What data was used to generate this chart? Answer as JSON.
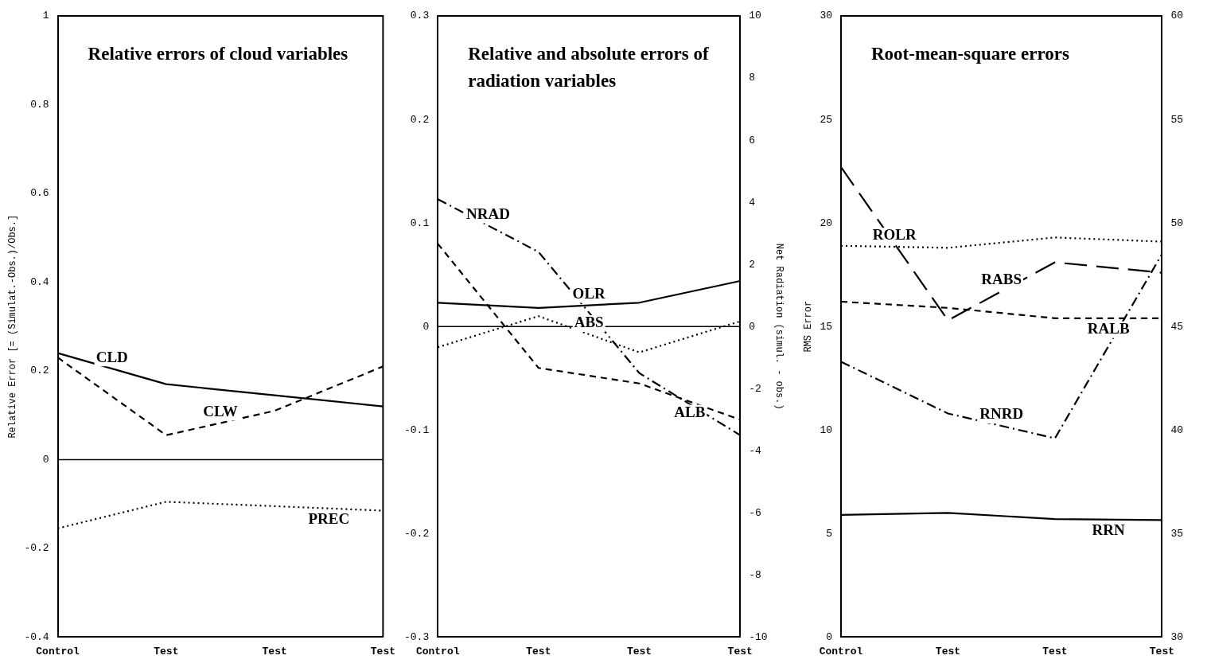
{
  "chart_data": [
    {
      "type": "line",
      "title": "Relative errors of cloud variables",
      "ylabel": "Relative Error [= (Simulat.-Obs.)/Obs.]",
      "categories": [
        "Control",
        "Test",
        "Test",
        "Test"
      ],
      "ylim": [
        -0.4,
        1
      ],
      "yticks": [
        {
          "value": -0.4,
          "label": "-0.4"
        },
        {
          "value": -0.2,
          "label": "-0.2"
        },
        0,
        {
          "value": 0.2,
          "label": "0.2"
        },
        {
          "value": 0.4,
          "label": "0.4"
        },
        {
          "value": 0.6,
          "label": "0.6"
        },
        {
          "value": 0.8,
          "label": "0.8"
        },
        1
      ],
      "grid": false,
      "legend": false,
      "marker": "none",
      "ref_lines": [
        {
          "axis": "y",
          "value": 0,
          "color": "#000000"
        }
      ],
      "series": [
        {
          "name": "CLD",
          "color": "#000000",
          "line_style": "solid",
          "values": [
            0.24,
            0.17,
            0.145,
            0.12
          ]
        },
        {
          "name": "CLW",
          "color": "#000000",
          "line_style": "dashed",
          "values": [
            0.23,
            0.055,
            0.11,
            0.21
          ]
        },
        {
          "name": "PREC",
          "color": "#000000",
          "line_style": "dotted",
          "values": [
            -0.155,
            -0.095,
            -0.105,
            -0.115
          ]
        }
      ]
    },
    {
      "type": "line",
      "title": "Relative and absolute errors of radiation variables",
      "y2label": "Net Radiation (simul. - obs.)",
      "categories": [
        "Control",
        "Test",
        "Test",
        "Test"
      ],
      "ylim": [
        -0.3,
        0.3
      ],
      "yticks": [
        {
          "value": -0.3,
          "label": "-0.3"
        },
        {
          "value": -0.2,
          "label": "-0.2"
        },
        {
          "value": -0.1,
          "label": "-0.1"
        },
        0,
        {
          "value": 0.1,
          "label": "0.1"
        },
        {
          "value": 0.2,
          "label": "0.2"
        },
        {
          "value": 0.3,
          "label": "0.3"
        }
      ],
      "y2lim": [
        -10,
        10
      ],
      "y2ticks": [
        -10,
        -8,
        -6,
        -4,
        -2,
        0,
        2,
        4,
        6,
        8,
        10
      ],
      "grid": false,
      "legend": false,
      "marker": "none",
      "ref_lines": [
        {
          "axis": "y",
          "value": 0,
          "color": "#000000"
        }
      ],
      "series": [
        {
          "name": "NRAD",
          "color": "#000000",
          "line_style": "dashdot",
          "axis": "y2",
          "values": [
            4.1,
            2.4,
            -1.5,
            -3.5
          ]
        },
        {
          "name": "OLR",
          "color": "#000000",
          "line_style": "solid",
          "values": [
            0.023,
            0.018,
            0.023,
            0.044
          ]
        },
        {
          "name": "ALB",
          "color": "#000000",
          "line_style": "dashed",
          "values": [
            0.08,
            -0.04,
            -0.055,
            -0.09
          ]
        },
        {
          "name": "ABS",
          "color": "#000000",
          "line_style": "dotted",
          "values": [
            -0.02,
            0.01,
            -0.025,
            0.005
          ]
        }
      ]
    },
    {
      "type": "line",
      "title": "Root-mean-square errors",
      "ylabel": "RMS Error",
      "categories": [
        "Control",
        "Test",
        "Test",
        "Test"
      ],
      "ylim": [
        0,
        30
      ],
      "yticks": [
        0,
        5,
        10,
        15,
        20,
        25,
        30
      ],
      "y2lim": [
        30,
        60
      ],
      "y2ticks": [
        30,
        35,
        40,
        45,
        50,
        55,
        60
      ],
      "grid": false,
      "legend": false,
      "marker": "none",
      "series": [
        {
          "name": "ROLR",
          "color": "#000000",
          "line_style": "dotted",
          "values": [
            18.9,
            18.8,
            19.3,
            19.1
          ]
        },
        {
          "name": "RABS",
          "color": "#000000",
          "line_style": "longdash",
          "values": [
            22.7,
            15.3,
            18.1,
            17.6
          ]
        },
        {
          "name": "RALB",
          "color": "#000000",
          "line_style": "dashed",
          "values": [
            16.2,
            15.9,
            15.4,
            15.4
          ]
        },
        {
          "name": "RNRD",
          "color": "#000000",
          "line_style": "dashdot",
          "values": [
            13.3,
            10.8,
            9.6,
            18.5
          ]
        },
        {
          "name": "RRN",
          "color": "#000000",
          "line_style": "solid",
          "values": [
            5.9,
            6.0,
            5.7,
            5.65
          ]
        }
      ]
    }
  ]
}
